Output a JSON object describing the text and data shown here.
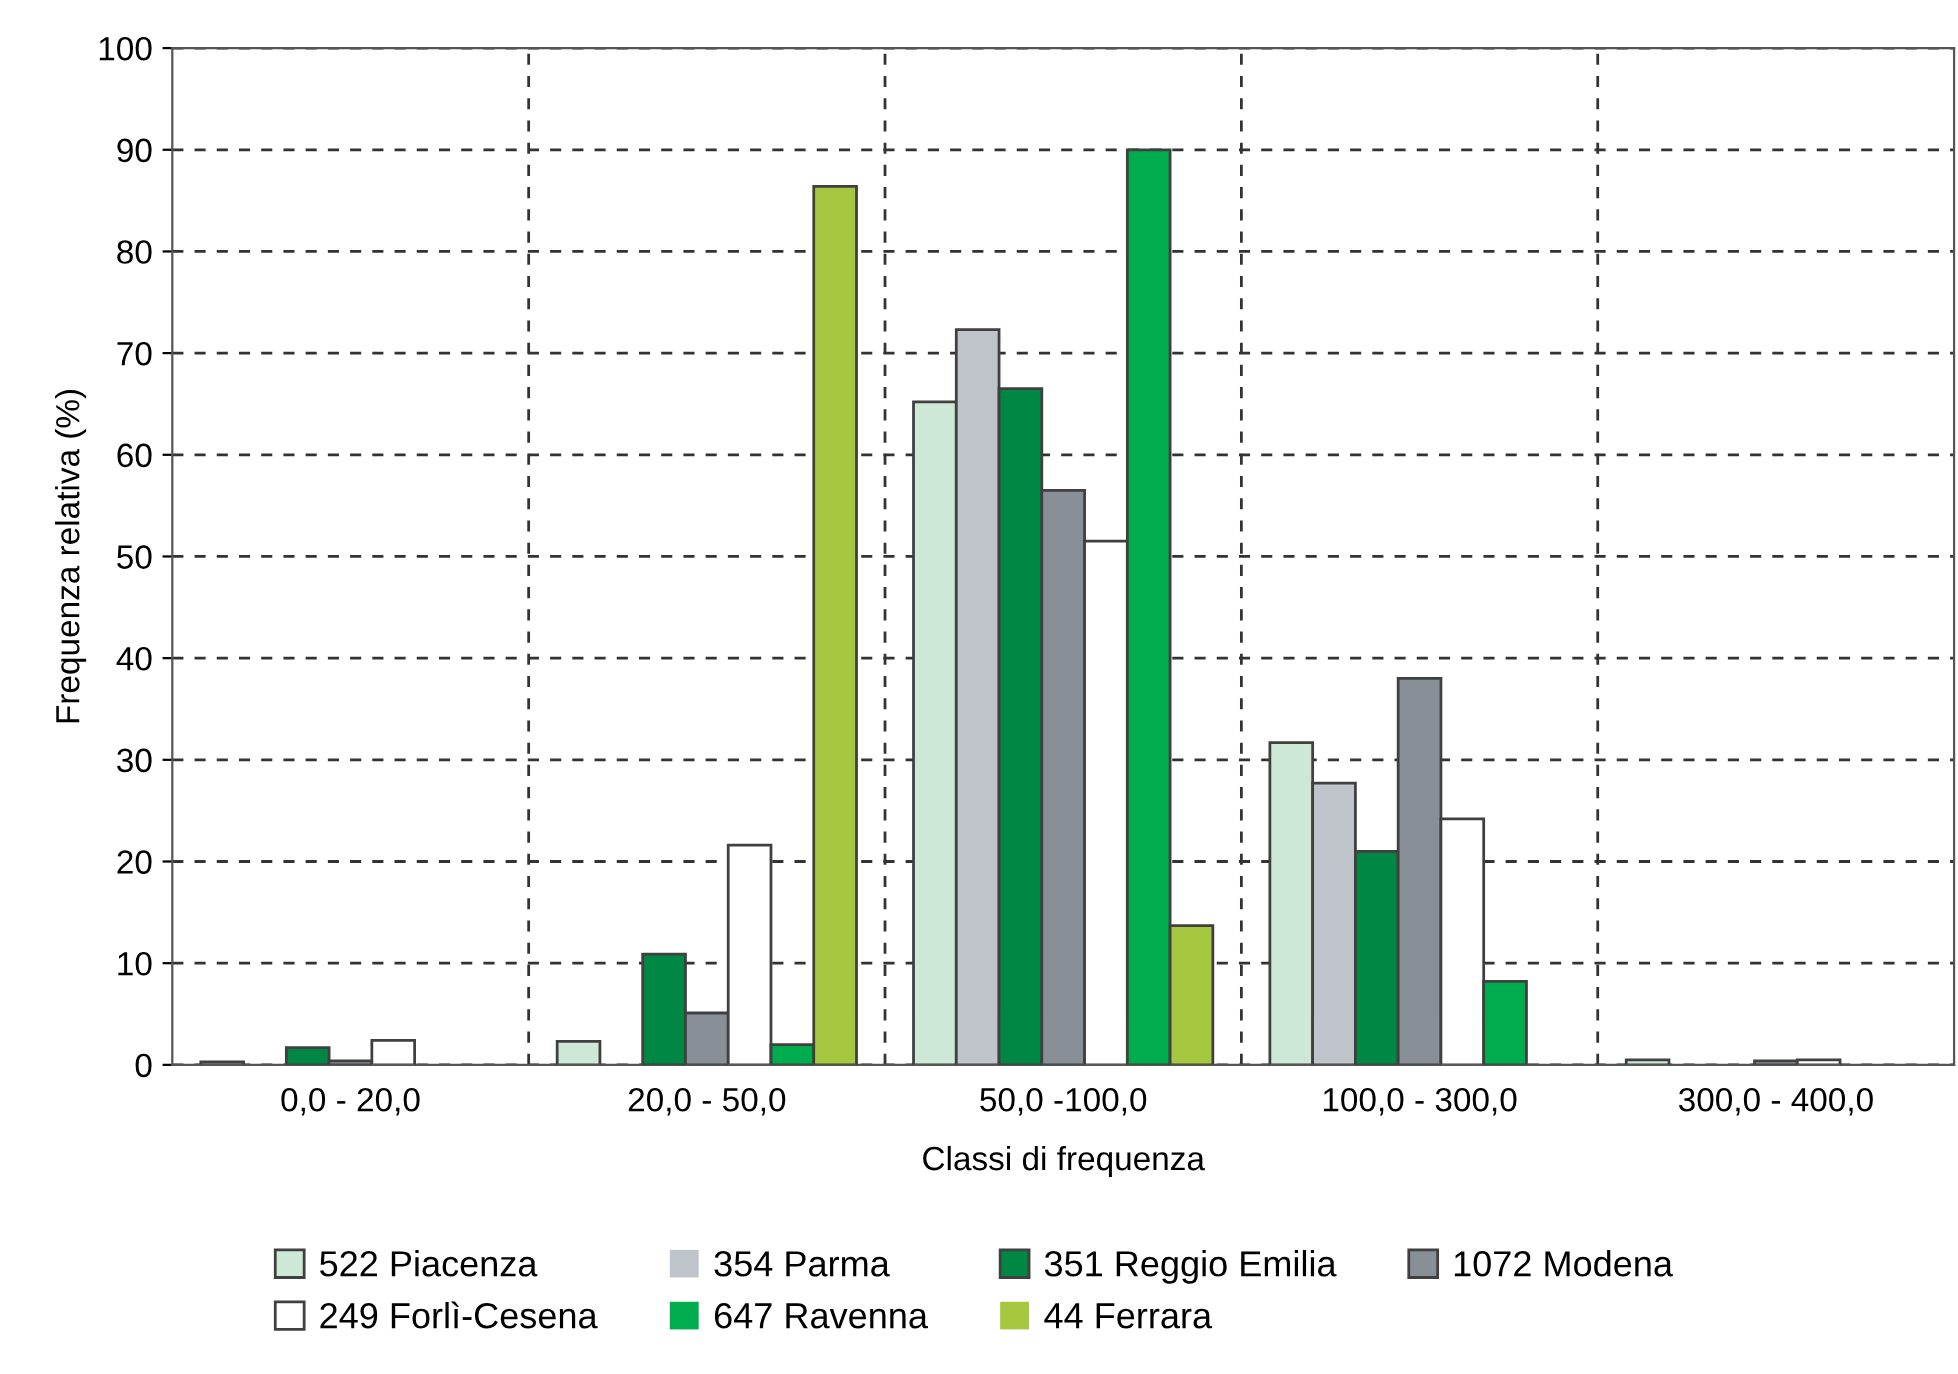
{
  "chart_data": {
    "type": "bar",
    "xlabel": "Classi di frequenza",
    "ylabel": "Frequenza relativa (%)",
    "categories": [
      "0,0 - 20,0",
      "20,0 - 50,0",
      "50,0 -100,0",
      "100,0 - 300,0",
      "300,0 - 400,0"
    ],
    "series": [
      {
        "name": "522 Piacenza",
        "color": "#cde8d6",
        "values": [
          0.3,
          2.3,
          65.2,
          31.7,
          0.5
        ]
      },
      {
        "name": "354 Parma",
        "color": "#bfc3ca",
        "values": [
          0,
          0,
          72.3,
          27.7,
          0
        ]
      },
      {
        "name": "351 Reggio Emilia",
        "color": "#008744",
        "values": [
          1.7,
          10.9,
          66.5,
          21.0,
          0
        ]
      },
      {
        "name": "1072 Modena",
        "color": "#898f96",
        "values": [
          0.4,
          5.1,
          56.5,
          38.0,
          0.4
        ]
      },
      {
        "name": "249 Forlì-Cesena",
        "color": "#ffffff",
        "values": [
          2.4,
          21.6,
          51.5,
          24.2,
          0.5
        ]
      },
      {
        "name": "647 Ravenna",
        "color": "#00ad4e",
        "values": [
          0,
          2.0,
          90.0,
          8.2,
          0
        ]
      },
      {
        "name": "44 Ferrara",
        "color": "#a6c840",
        "values": [
          0,
          86.4,
          13.7,
          0,
          0
        ]
      }
    ],
    "ylim": [
      0,
      100
    ],
    "yticks": [
      0,
      10,
      20,
      30,
      40,
      50,
      60,
      70,
      80,
      90,
      100
    ],
    "grid": true,
    "legend": "bottom"
  }
}
